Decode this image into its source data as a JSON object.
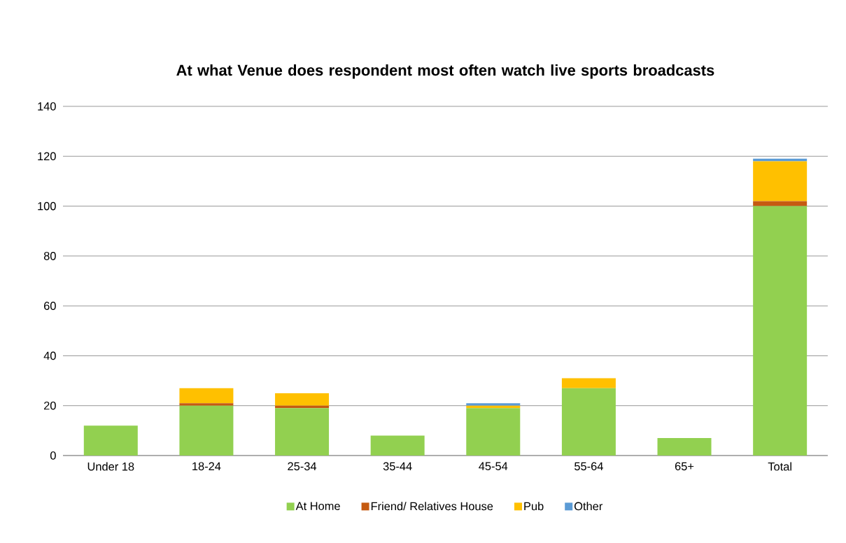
{
  "chart_data": {
    "type": "bar",
    "stacked": true,
    "title": "At what Venue does respondent most often watch live sports broadcasts",
    "categories": [
      "Under 18",
      "18-24",
      "25-34",
      "35-44",
      "45-54",
      "55-64",
      "65+",
      "Total"
    ],
    "series": [
      {
        "name": "At Home",
        "color": "#92d050",
        "values": [
          12,
          20,
          19,
          8,
          19,
          27,
          7,
          100
        ]
      },
      {
        "name": "Friend/ Relatives House",
        "color": "#c55a11",
        "values": [
          0,
          1,
          1,
          0,
          0,
          0,
          0,
          2
        ]
      },
      {
        "name": "Pub",
        "color": "#ffc000",
        "values": [
          0,
          6,
          5,
          0,
          1,
          4,
          0,
          16
        ]
      },
      {
        "name": "Other",
        "color": "#5b9bd5",
        "values": [
          0,
          0,
          0,
          0,
          1,
          0,
          0,
          1
        ]
      }
    ],
    "ylim": [
      0,
      140
    ],
    "yticks": [
      0,
      20,
      40,
      60,
      80,
      100,
      120,
      140
    ],
    "grid": "y",
    "legend": "bottom"
  }
}
